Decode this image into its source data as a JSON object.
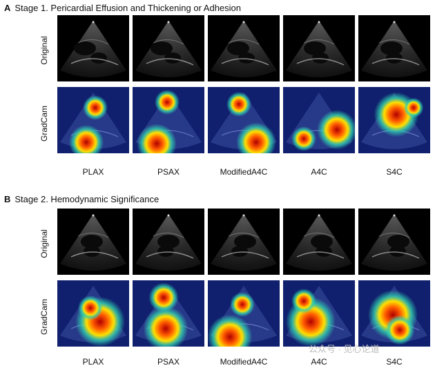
{
  "sections": [
    {
      "letter": "A",
      "title": "Stage 1. Pericardial Effusion and Thickening or Adhesion",
      "row_labels": [
        "Original",
        "GradCam"
      ],
      "columns": [
        "PLAX",
        "PSAX",
        "ModifiedA4C",
        "A4C",
        "S4C"
      ]
    },
    {
      "letter": "B",
      "title": "Stage 2. Hemodynamic Significance",
      "row_labels": [
        "Original",
        "GradCam"
      ],
      "columns": [
        "PLAX",
        "PSAX",
        "ModifiedA4C",
        "A4C",
        "S4C"
      ]
    }
  ],
  "watermark": "公众号 · 见心论道",
  "colors": {
    "heatmap_background": "#10206e",
    "echo_background": "#000000"
  }
}
